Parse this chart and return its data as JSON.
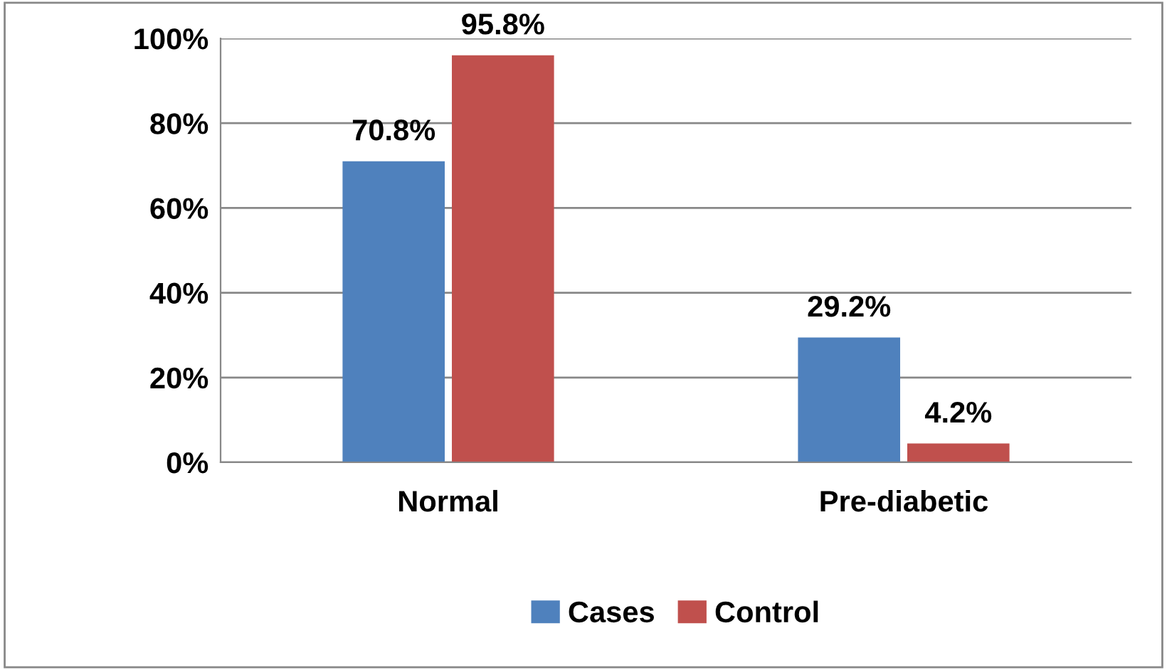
{
  "chart_data": {
    "type": "bar",
    "categories": [
      "Normal",
      "Pre-diabetic"
    ],
    "series": [
      {
        "name": "Cases",
        "color": "#4f81bd",
        "values": [
          70.8,
          29.2
        ],
        "value_labels": [
          "70.8%",
          "29.2%"
        ]
      },
      {
        "name": "Control",
        "color": "#c0504d",
        "values": [
          95.8,
          4.2
        ],
        "value_labels": [
          "95.8%",
          "4.2%"
        ]
      }
    ],
    "ylim": [
      0,
      100
    ],
    "yticks": [
      {
        "value": 0,
        "label": "0%"
      },
      {
        "value": 20,
        "label": "20%"
      },
      {
        "value": 40,
        "label": "40%"
      },
      {
        "value": 60,
        "label": "60%"
      },
      {
        "value": 80,
        "label": "80%"
      },
      {
        "value": 100,
        "label": "100%"
      }
    ],
    "grid": "y",
    "legend": "bottom"
  }
}
